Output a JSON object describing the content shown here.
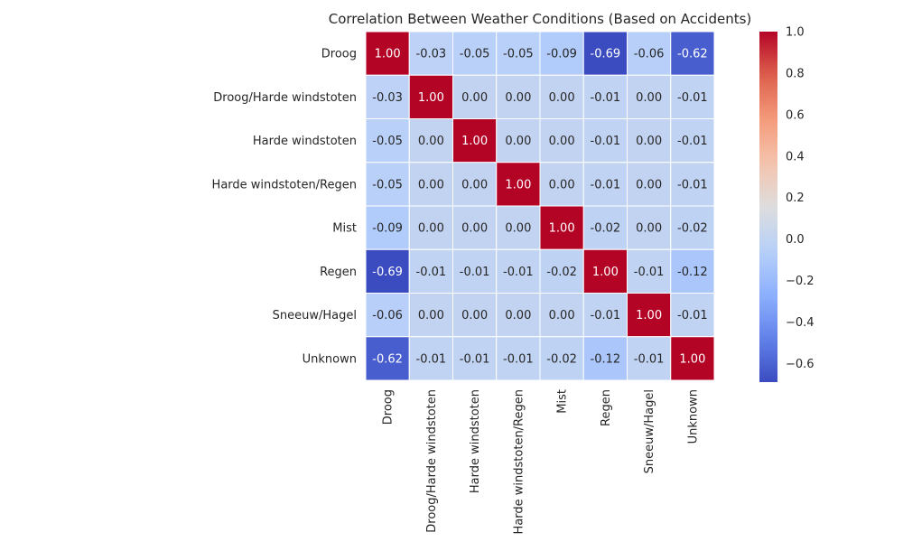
{
  "chart_data": {
    "type": "heatmap",
    "title": "Correlation Between Weather Conditions (Based on Accidents)",
    "xlabel": "",
    "ylabel": "",
    "colormap": "coolwarm",
    "vmin": -0.69,
    "vmax": 1.0,
    "grid": true,
    "grid_color": "#ffffff",
    "annotate": true,
    "legend": "colorbar-right",
    "row_labels": [
      "Droog",
      "Droog/Harde windstoten",
      "Harde windstoten",
      "Harde windstoten/Regen",
      "Mist",
      "Regen",
      "Sneeuw/Hagel",
      "Unknown"
    ],
    "col_labels": [
      "Droog",
      "Droog/Harde windstoten",
      "Harde windstoten",
      "Harde windstoten/Regen",
      "Mist",
      "Regen",
      "Sneeuw/Hagel",
      "Unknown"
    ],
    "values": [
      [
        1.0,
        -0.03,
        -0.05,
        -0.05,
        -0.09,
        -0.69,
        -0.06,
        -0.62
      ],
      [
        -0.03,
        1.0,
        -0.0,
        -0.0,
        -0.0,
        -0.01,
        -0.0,
        -0.01
      ],
      [
        -0.05,
        -0.0,
        1.0,
        -0.0,
        -0.0,
        -0.01,
        -0.0,
        -0.01
      ],
      [
        -0.05,
        -0.0,
        -0.0,
        1.0,
        -0.0,
        -0.01,
        -0.0,
        -0.01
      ],
      [
        -0.09,
        -0.0,
        -0.0,
        -0.0,
        1.0,
        -0.02,
        -0.0,
        -0.02
      ],
      [
        -0.69,
        -0.01,
        -0.01,
        -0.01,
        -0.02,
        1.0,
        -0.01,
        -0.12
      ],
      [
        -0.06,
        -0.0,
        -0.0,
        -0.0,
        -0.0,
        -0.01,
        1.0,
        -0.01
      ],
      [
        -0.62,
        -0.01,
        -0.01,
        -0.01,
        -0.02,
        -0.12,
        -0.01,
        1.0
      ]
    ],
    "colorbar_ticks": [
      1.0,
      0.8,
      0.6,
      0.4,
      0.2,
      0.0,
      -0.2,
      -0.4,
      -0.6
    ],
    "colorbar_tick_labels": [
      "1.0",
      "0.8",
      "0.6",
      "0.4",
      "0.2",
      "0.0",
      "−0.2",
      "−0.4",
      "−0.6"
    ]
  }
}
